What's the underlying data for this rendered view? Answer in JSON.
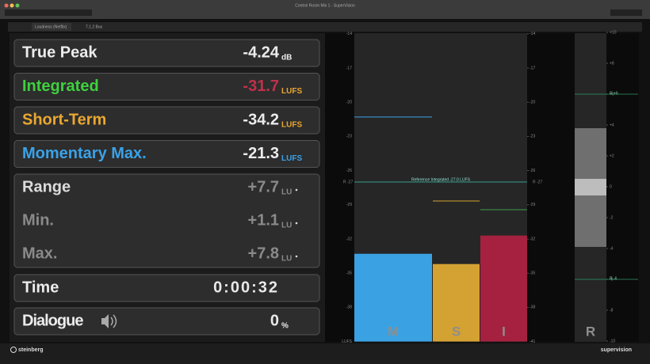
{
  "window": {
    "title": "Control Room Mix 1 - SuperVision",
    "tabs": [
      "Loudness (Netflix)",
      "7.1.2 Bus"
    ]
  },
  "readouts": [
    {
      "label": "True Peak",
      "value": "-4.24",
      "unit": "dB"
    },
    {
      "label": "Integrated",
      "value": "-31.7",
      "unit": "LUFS"
    },
    {
      "label": "Short-Term",
      "value": "-34.2",
      "unit": "LUFS"
    },
    {
      "label": "Momentary Max.",
      "value": "-21.3",
      "unit": "LUFS"
    }
  ],
  "range_group": [
    {
      "label": "Range",
      "value": "+7.7",
      "unit": "LU"
    },
    {
      "label": "Min.",
      "value": "+1.1",
      "unit": "LU"
    },
    {
      "label": "Max.",
      "value": "+7.8",
      "unit": "LU"
    }
  ],
  "time": {
    "label": "Time",
    "value": "0:00:32"
  },
  "dialogue": {
    "label": "Dialogue",
    "value": "0",
    "unit": "%"
  },
  "meter": {
    "unit": "LUFS",
    "ticks": [
      -14,
      -17,
      -20,
      -23,
      -26,
      -29,
      -32,
      -35,
      -38
    ],
    "bottom": -41,
    "reference": {
      "value": -27,
      "marker": "R -27",
      "label": "Reference Integrated -27.0 LUFS"
    },
    "bars": [
      {
        "label": "M",
        "value": -33.3,
        "color": "#3aa2e2"
      },
      {
        "label": "S",
        "value": -34.2,
        "color": "#d4a232"
      },
      {
        "label": "I",
        "value": -31.7,
        "color": "#a5213f"
      }
    ]
  },
  "range_meter": {
    "label": "R",
    "ticks": [
      {
        "value": 10,
        "label": "+10"
      },
      {
        "value": 8,
        "label": "+8"
      },
      {
        "value": 6,
        "label": "+6"
      },
      {
        "value": 4,
        "label": "+4"
      },
      {
        "value": 2,
        "label": "+2"
      },
      0,
      -2,
      -4,
      -6,
      -8,
      -10
    ],
    "markers": [
      {
        "value": 6,
        "label": "R +6"
      },
      {
        "value": -6,
        "label": "R -6"
      }
    ]
  },
  "footer": {
    "brand": "steinberg",
    "product": "supervision"
  }
}
